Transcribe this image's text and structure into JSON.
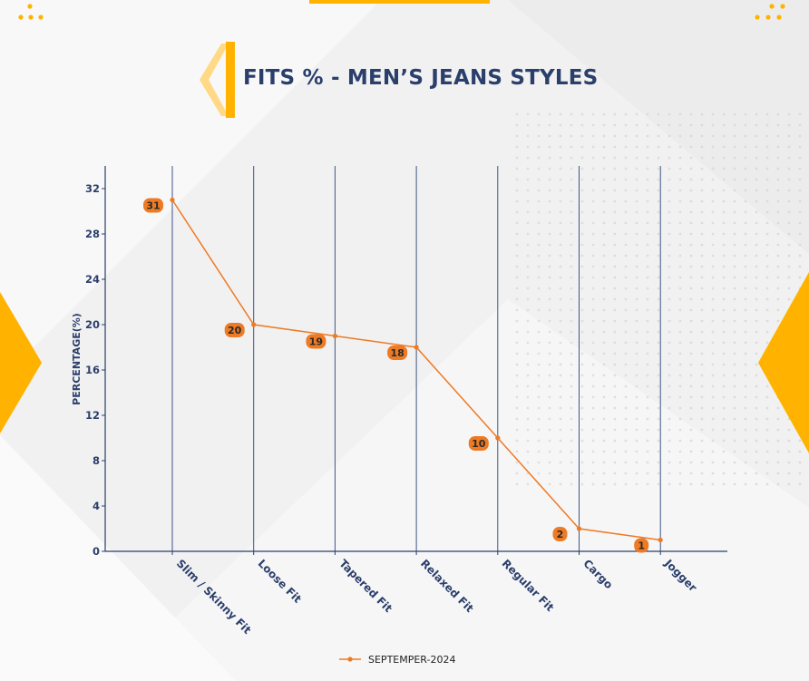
{
  "colors": {
    "title": "#2b3f6b",
    "accent": "#ffb300",
    "series": "#ee7a24",
    "axis": "#2b3f6b",
    "gridline": "#3f5486"
  },
  "chart_data": {
    "type": "line",
    "title": "FITS % - MEN’S JEANS STYLES",
    "xlabel": "",
    "ylabel": "PERCENTAGE(%)",
    "categories": [
      "Slim / Skinny Fit",
      "Loose Fit",
      "Tapered Fit",
      "Relaxed Fit",
      "Regular Fit",
      "Cargo",
      "Jogger"
    ],
    "series": [
      {
        "name": "SEPTEMPER-2024",
        "values": [
          31,
          20,
          19,
          18,
          10,
          2,
          1
        ]
      }
    ],
    "ylim": [
      0,
      34
    ],
    "yticks": [
      0,
      4,
      8,
      12,
      16,
      20,
      24,
      28,
      32
    ],
    "grid": "vertical",
    "legend": "bottom-center",
    "data_labels": true
  }
}
